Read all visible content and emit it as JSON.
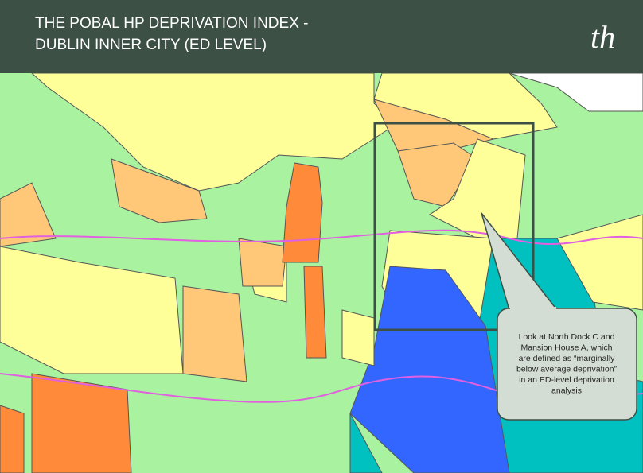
{
  "header": {
    "title_lines": [
      "THE POBAL HP DEPRIVATION INDEX -",
      "DUBLIN INNER CITY (ED LEVEL)"
    ],
    "logo": "th"
  },
  "callout": {
    "lines": [
      "Look at North Dock C and",
      "Mansion House A, which",
      "are defined as “marginally",
      "below average deprivation”",
      "in an ED-level deprivation",
      "analysis"
    ]
  }
}
